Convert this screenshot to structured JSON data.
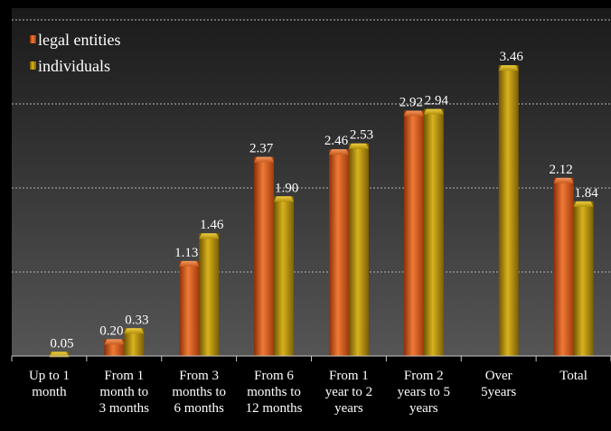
{
  "chart_data": {
    "type": "bar",
    "title": "",
    "xlabel": "",
    "ylabel": "",
    "ylim": [
      0,
      4
    ],
    "grid": true,
    "legend_position": "top-left",
    "categories": [
      [
        "Up to 1",
        "month"
      ],
      [
        "From 1",
        "month to",
        "3 months"
      ],
      [
        "From 3",
        "months to",
        "6 months"
      ],
      [
        "From 6",
        "months to",
        "12 months"
      ],
      [
        "From 1",
        "year to 2",
        "years"
      ],
      [
        "From 2",
        "years to 5",
        "years"
      ],
      [
        "Over",
        "5years"
      ],
      [
        "Total"
      ]
    ],
    "series": [
      {
        "name": "legal entities",
        "color": "#d2571c",
        "values": [
          null,
          0.2,
          1.13,
          2.37,
          2.46,
          2.92,
          null,
          2.12
        ],
        "labels": [
          "",
          "0.20",
          "1.13",
          "2.37",
          "2.46",
          "2.92",
          "",
          "2.12"
        ]
      },
      {
        "name": "individuals",
        "color": "#b08e0c",
        "values": [
          0.05,
          0.33,
          1.46,
          1.9,
          2.53,
          2.94,
          3.46,
          1.84
        ],
        "labels": [
          "0.05",
          "0.33",
          "1.46",
          "1.90",
          "2.53",
          "2.94",
          "3.46",
          "1.84"
        ]
      }
    ]
  }
}
